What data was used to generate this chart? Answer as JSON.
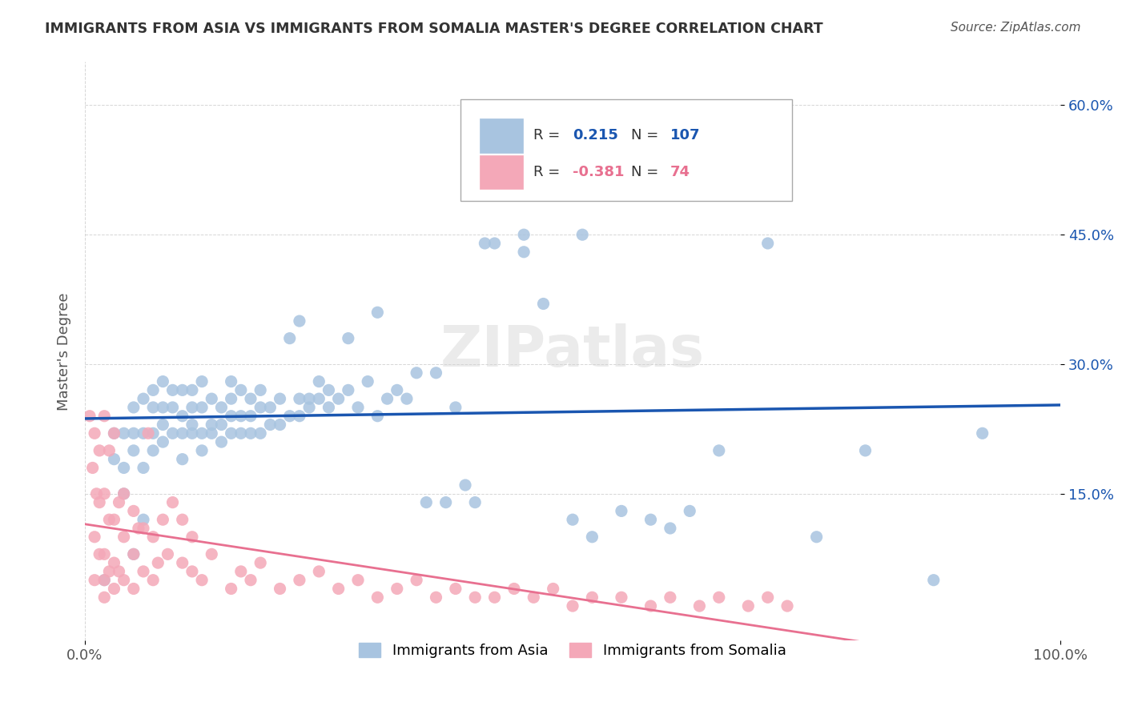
{
  "title": "IMMIGRANTS FROM ASIA VS IMMIGRANTS FROM SOMALIA MASTER'S DEGREE CORRELATION CHART",
  "source": "Source: ZipAtlas.com",
  "xlabel": "",
  "ylabel": "Master's Degree",
  "x_tick_labels": [
    "0.0%",
    "100.0%"
  ],
  "y_tick_labels": [
    "15.0%",
    "30.0%",
    "45.0%",
    "60.0%"
  ],
  "y_tick_values": [
    0.15,
    0.3,
    0.45,
    0.6
  ],
  "xlim": [
    0,
    1.0
  ],
  "ylim": [
    -0.02,
    0.65
  ],
  "legend_label_asia": "Immigrants from Asia",
  "legend_label_somalia": "Immigrants from Somalia",
  "R_asia": 0.215,
  "N_asia": 107,
  "R_somalia": -0.381,
  "N_somalia": 74,
  "color_asia": "#a8c4e0",
  "color_asia_line": "#1a56b0",
  "color_somalia": "#f4a8b8",
  "color_somalia_line": "#e87090",
  "background_color": "#ffffff",
  "watermark": "ZIPatlas",
  "asia_scatter_x": [
    0.02,
    0.03,
    0.03,
    0.04,
    0.04,
    0.04,
    0.05,
    0.05,
    0.05,
    0.05,
    0.06,
    0.06,
    0.06,
    0.06,
    0.07,
    0.07,
    0.07,
    0.07,
    0.08,
    0.08,
    0.08,
    0.08,
    0.09,
    0.09,
    0.09,
    0.1,
    0.1,
    0.1,
    0.1,
    0.11,
    0.11,
    0.11,
    0.11,
    0.12,
    0.12,
    0.12,
    0.12,
    0.13,
    0.13,
    0.13,
    0.14,
    0.14,
    0.14,
    0.15,
    0.15,
    0.15,
    0.15,
    0.16,
    0.16,
    0.16,
    0.17,
    0.17,
    0.17,
    0.18,
    0.18,
    0.18,
    0.19,
    0.19,
    0.2,
    0.2,
    0.21,
    0.21,
    0.22,
    0.22,
    0.22,
    0.23,
    0.23,
    0.24,
    0.24,
    0.25,
    0.25,
    0.26,
    0.27,
    0.27,
    0.28,
    0.29,
    0.3,
    0.3,
    0.31,
    0.32,
    0.33,
    0.34,
    0.35,
    0.36,
    0.37,
    0.38,
    0.39,
    0.4,
    0.41,
    0.42,
    0.45,
    0.45,
    0.47,
    0.5,
    0.51,
    0.51,
    0.52,
    0.55,
    0.58,
    0.6,
    0.62,
    0.65,
    0.7,
    0.75,
    0.8,
    0.87,
    0.92
  ],
  "asia_scatter_y": [
    0.05,
    0.19,
    0.22,
    0.15,
    0.18,
    0.22,
    0.08,
    0.2,
    0.22,
    0.25,
    0.12,
    0.18,
    0.22,
    0.26,
    0.2,
    0.22,
    0.25,
    0.27,
    0.21,
    0.23,
    0.25,
    0.28,
    0.22,
    0.25,
    0.27,
    0.19,
    0.22,
    0.24,
    0.27,
    0.22,
    0.23,
    0.25,
    0.27,
    0.2,
    0.22,
    0.25,
    0.28,
    0.22,
    0.23,
    0.26,
    0.21,
    0.23,
    0.25,
    0.22,
    0.24,
    0.26,
    0.28,
    0.22,
    0.24,
    0.27,
    0.22,
    0.24,
    0.26,
    0.22,
    0.25,
    0.27,
    0.23,
    0.25,
    0.23,
    0.26,
    0.24,
    0.33,
    0.24,
    0.26,
    0.35,
    0.25,
    0.26,
    0.26,
    0.28,
    0.25,
    0.27,
    0.26,
    0.27,
    0.33,
    0.25,
    0.28,
    0.24,
    0.36,
    0.26,
    0.27,
    0.26,
    0.29,
    0.14,
    0.29,
    0.14,
    0.25,
    0.16,
    0.14,
    0.44,
    0.44,
    0.43,
    0.45,
    0.37,
    0.12,
    0.45,
    0.5,
    0.1,
    0.13,
    0.12,
    0.11,
    0.13,
    0.2,
    0.44,
    0.1,
    0.2,
    0.05,
    0.22
  ],
  "somalia_scatter_x": [
    0.005,
    0.008,
    0.01,
    0.01,
    0.01,
    0.012,
    0.015,
    0.015,
    0.015,
    0.02,
    0.02,
    0.02,
    0.02,
    0.02,
    0.025,
    0.025,
    0.025,
    0.03,
    0.03,
    0.03,
    0.03,
    0.035,
    0.035,
    0.04,
    0.04,
    0.04,
    0.05,
    0.05,
    0.05,
    0.055,
    0.06,
    0.06,
    0.065,
    0.07,
    0.07,
    0.075,
    0.08,
    0.085,
    0.09,
    0.1,
    0.1,
    0.11,
    0.11,
    0.12,
    0.13,
    0.15,
    0.16,
    0.17,
    0.18,
    0.2,
    0.22,
    0.24,
    0.26,
    0.28,
    0.3,
    0.32,
    0.34,
    0.36,
    0.38,
    0.4,
    0.42,
    0.44,
    0.46,
    0.48,
    0.5,
    0.52,
    0.55,
    0.58,
    0.6,
    0.63,
    0.65,
    0.68,
    0.7,
    0.72
  ],
  "somalia_scatter_y": [
    0.24,
    0.18,
    0.05,
    0.1,
    0.22,
    0.15,
    0.08,
    0.14,
    0.2,
    0.03,
    0.05,
    0.08,
    0.15,
    0.24,
    0.06,
    0.12,
    0.2,
    0.04,
    0.07,
    0.12,
    0.22,
    0.06,
    0.14,
    0.05,
    0.1,
    0.15,
    0.04,
    0.08,
    0.13,
    0.11,
    0.06,
    0.11,
    0.22,
    0.05,
    0.1,
    0.07,
    0.12,
    0.08,
    0.14,
    0.07,
    0.12,
    0.06,
    0.1,
    0.05,
    0.08,
    0.04,
    0.06,
    0.05,
    0.07,
    0.04,
    0.05,
    0.06,
    0.04,
    0.05,
    0.03,
    0.04,
    0.05,
    0.03,
    0.04,
    0.03,
    0.03,
    0.04,
    0.03,
    0.04,
    0.02,
    0.03,
    0.03,
    0.02,
    0.03,
    0.02,
    0.03,
    0.02,
    0.03,
    0.02
  ]
}
